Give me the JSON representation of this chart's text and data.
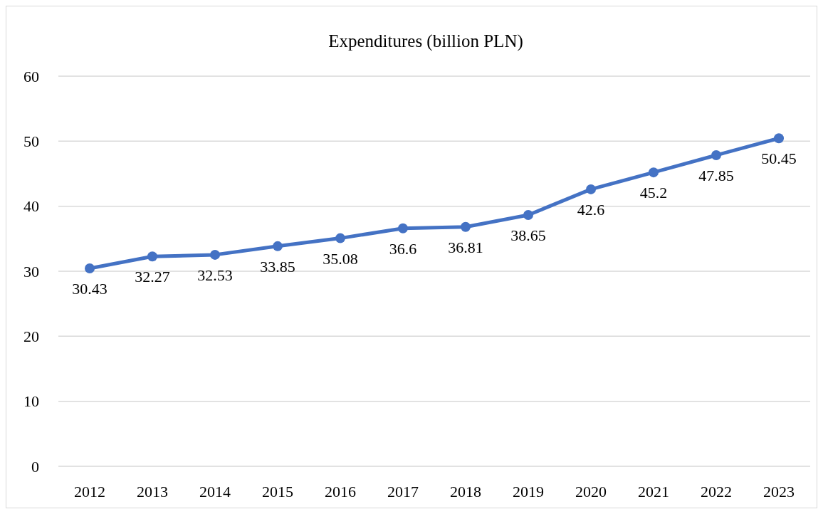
{
  "chart_data": {
    "type": "line",
    "title": "Expenditures (billion PLN)",
    "categories": [
      "2012",
      "2013",
      "2014",
      "2015",
      "2016",
      "2017",
      "2018",
      "2019",
      "2020",
      "2021",
      "2022",
      "2023"
    ],
    "series": [
      {
        "color": "#4472c4",
        "values": [
          30.43,
          32.27,
          32.53,
          33.85,
          35.08,
          36.6,
          36.81,
          38.65,
          42.6,
          45.2,
          47.85,
          50.45
        ]
      }
    ],
    "ylim": [
      0,
      60
    ],
    "yticks": [
      0,
      10,
      20,
      30,
      40,
      50,
      60
    ],
    "grid": "y",
    "marker": "circle",
    "line_style": "solid",
    "data_labels": true
  }
}
